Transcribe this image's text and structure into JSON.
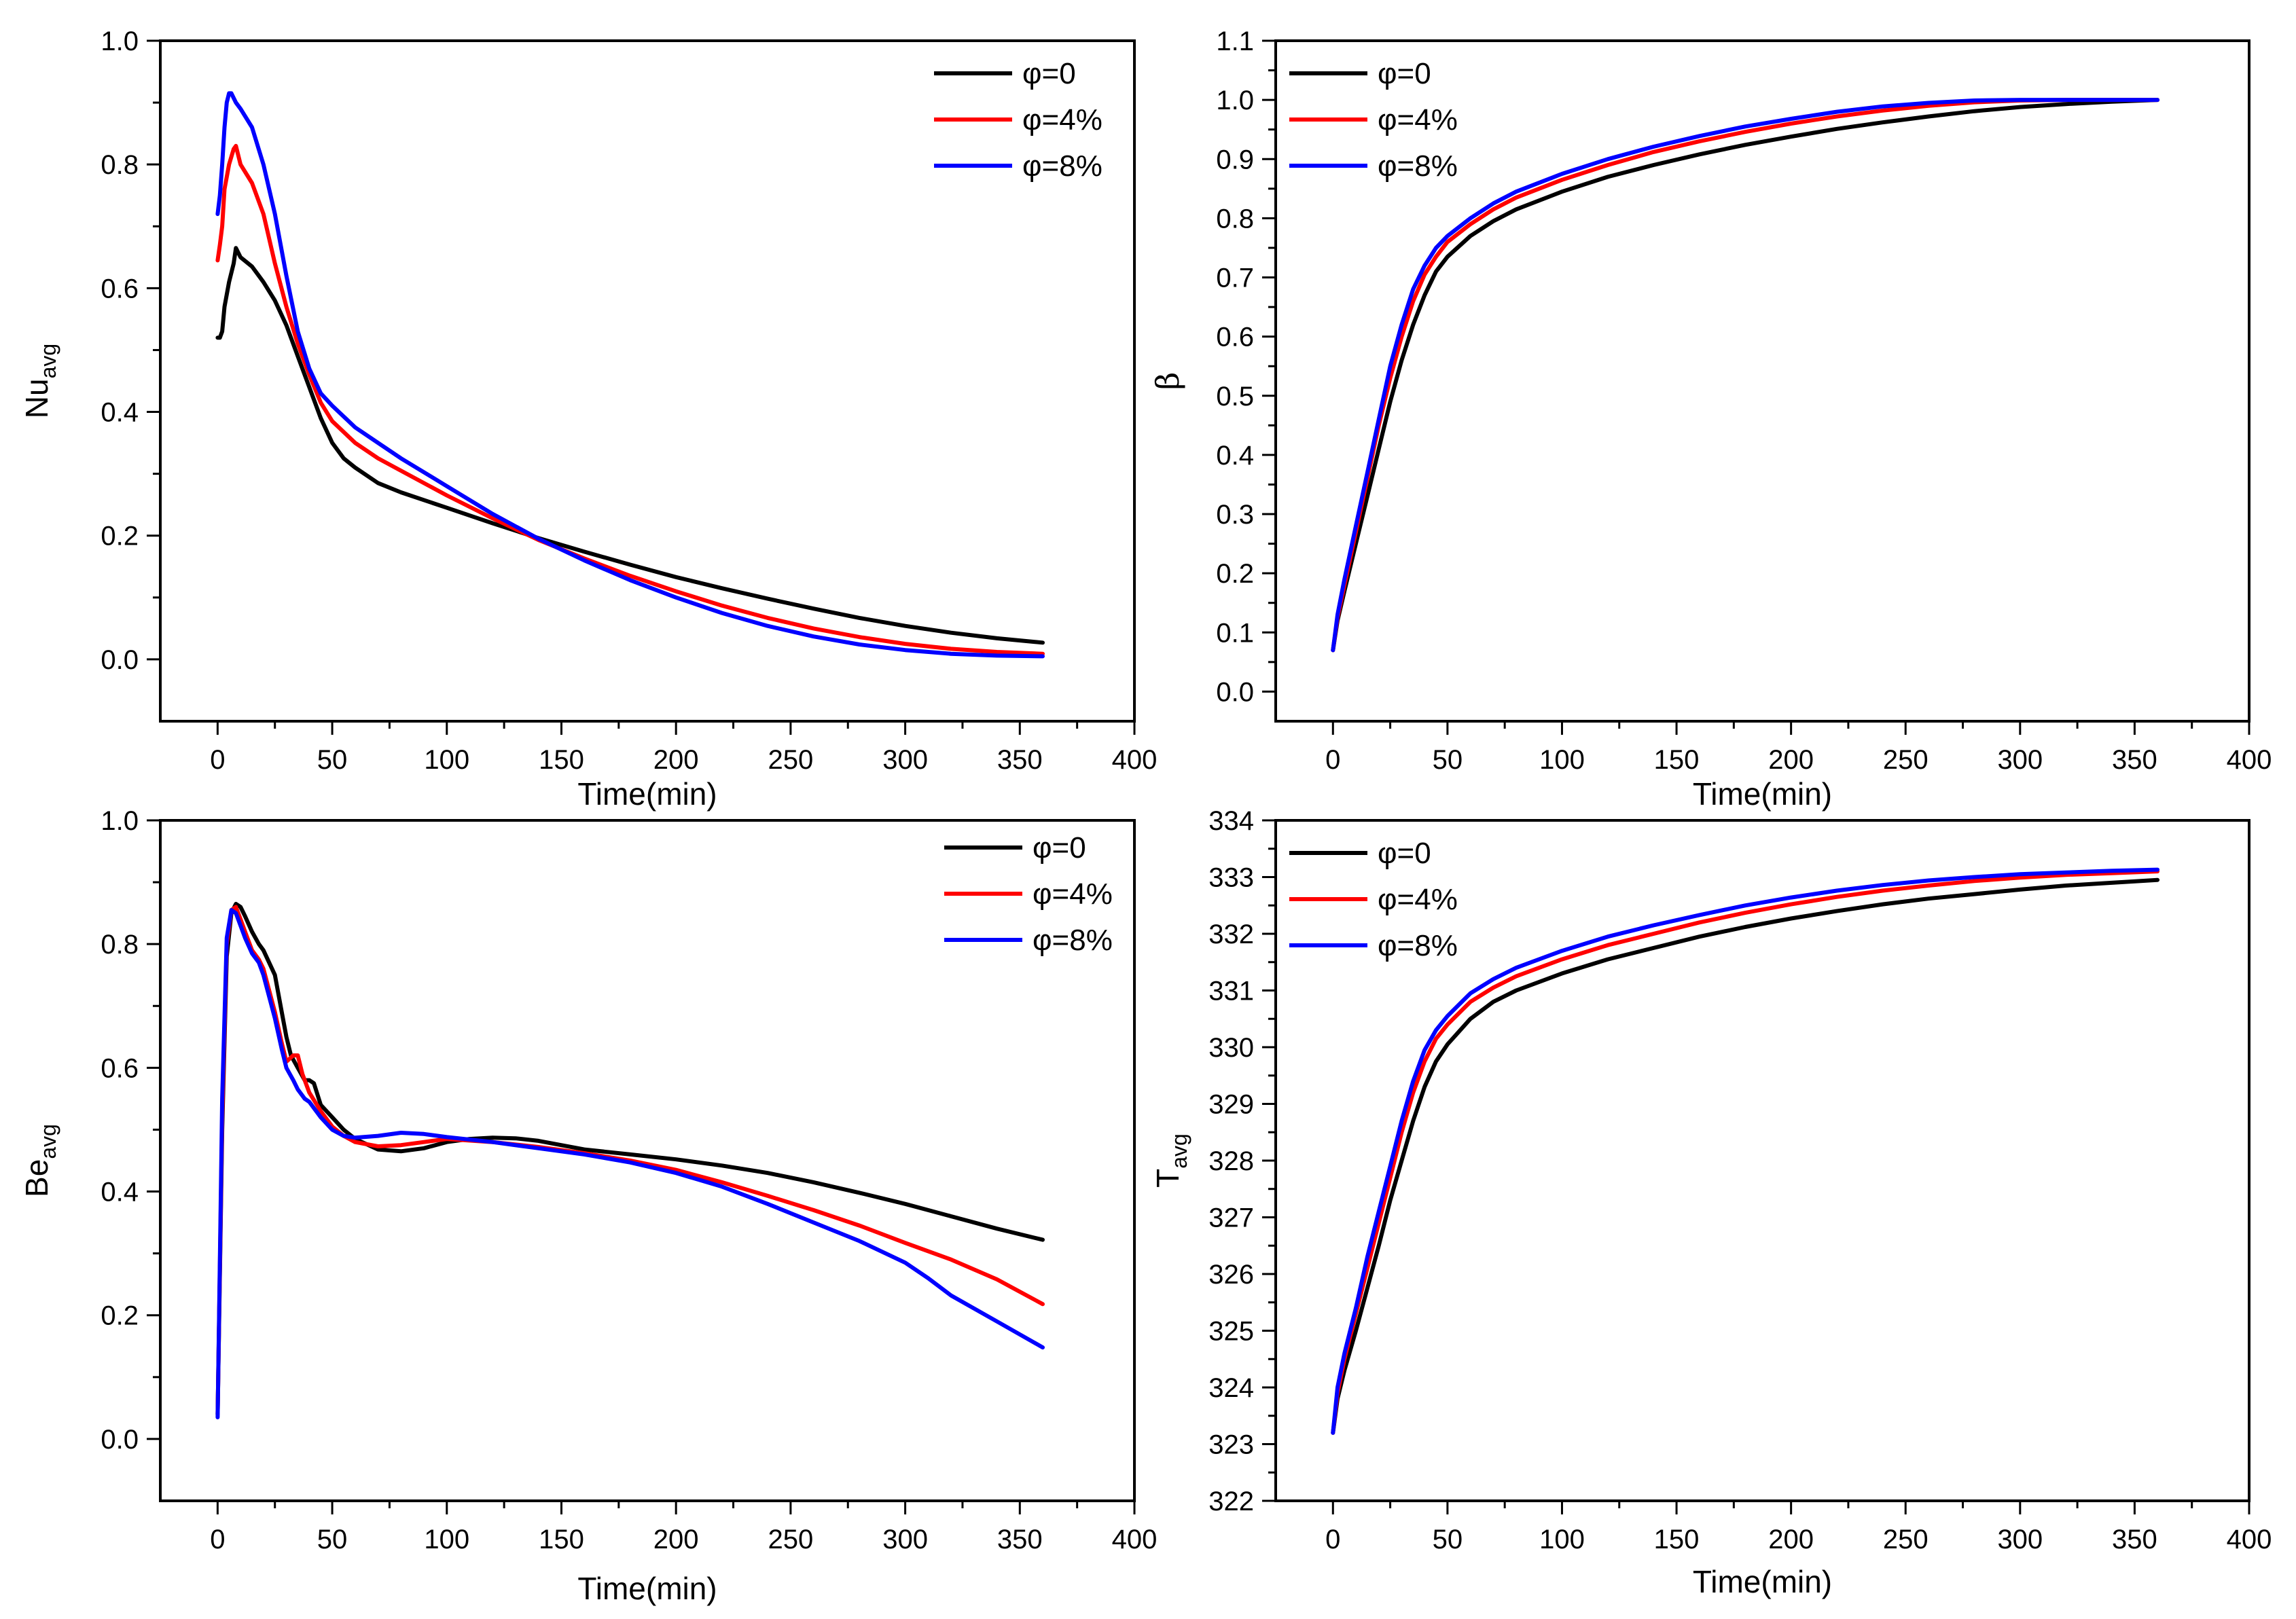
{
  "colors": {
    "phi0": "#000000",
    "phi4": "#ff0000",
    "phi8": "#0000ff"
  },
  "chart_data": [
    {
      "type": "line",
      "id": "nu",
      "title": "",
      "xlabel": "Time(min)",
      "ylabel": {
        "main": "Nu",
        "sub": "avg"
      },
      "xlim": [
        -25,
        400
      ],
      "ylim": [
        -0.1,
        1.0
      ],
      "xticks": [
        0,
        50,
        100,
        150,
        200,
        250,
        300,
        350,
        400
      ],
      "xtick_labels": [
        "0",
        "50",
        "100",
        "150",
        "200",
        "250",
        "300",
        "350",
        "400"
      ],
      "yticks": [
        0.0,
        0.2,
        0.4,
        0.6,
        0.8,
        1.0
      ],
      "ytick_labels": [
        "0.0",
        "0.2",
        "0.4",
        "0.6",
        "0.8",
        "1.0"
      ],
      "legend_position": "top-right",
      "series": [
        {
          "name": "φ=0",
          "color": "#000000",
          "x": [
            0,
            1,
            2,
            3,
            5,
            7,
            8,
            10,
            15,
            20,
            25,
            30,
            35,
            40,
            45,
            50,
            55,
            60,
            70,
            80,
            100,
            120,
            140,
            160,
            180,
            200,
            220,
            240,
            260,
            280,
            300,
            320,
            340,
            360
          ],
          "y": [
            0.52,
            0.52,
            0.53,
            0.57,
            0.61,
            0.64,
            0.665,
            0.65,
            0.635,
            0.61,
            0.58,
            0.54,
            0.49,
            0.44,
            0.39,
            0.35,
            0.325,
            0.31,
            0.285,
            0.27,
            0.245,
            0.22,
            0.196,
            0.174,
            0.153,
            0.133,
            0.115,
            0.098,
            0.082,
            0.067,
            0.054,
            0.043,
            0.034,
            0.027
          ]
        },
        {
          "name": "φ=4%",
          "color": "#ff0000",
          "x": [
            0,
            1,
            2,
            3,
            5,
            7,
            8,
            10,
            15,
            20,
            25,
            30,
            35,
            40,
            45,
            50,
            60,
            70,
            80,
            100,
            120,
            140,
            160,
            180,
            200,
            220,
            240,
            260,
            280,
            300,
            320,
            340,
            360
          ],
          "y": [
            0.645,
            0.67,
            0.7,
            0.76,
            0.8,
            0.825,
            0.83,
            0.8,
            0.77,
            0.72,
            0.64,
            0.57,
            0.51,
            0.46,
            0.415,
            0.385,
            0.35,
            0.325,
            0.305,
            0.265,
            0.228,
            0.193,
            0.163,
            0.135,
            0.11,
            0.087,
            0.067,
            0.05,
            0.036,
            0.025,
            0.017,
            0.012,
            0.009
          ]
        },
        {
          "name": "φ=8%",
          "color": "#0000ff",
          "x": [
            0,
            1,
            2,
            3,
            4,
            5,
            6,
            8,
            10,
            15,
            20,
            25,
            30,
            35,
            40,
            45,
            50,
            60,
            70,
            80,
            100,
            120,
            140,
            160,
            180,
            200,
            220,
            240,
            260,
            280,
            300,
            320,
            340,
            360
          ],
          "y": [
            0.72,
            0.75,
            0.8,
            0.86,
            0.9,
            0.915,
            0.915,
            0.9,
            0.89,
            0.86,
            0.8,
            0.72,
            0.62,
            0.53,
            0.47,
            0.43,
            0.41,
            0.375,
            0.35,
            0.325,
            0.28,
            0.235,
            0.195,
            0.16,
            0.128,
            0.1,
            0.075,
            0.054,
            0.037,
            0.024,
            0.015,
            0.009,
            0.006,
            0.005
          ]
        }
      ]
    },
    {
      "type": "line",
      "id": "beta",
      "title": "",
      "xlabel": "Time(min)",
      "ylabel": {
        "main": "β",
        "sub": ""
      },
      "xlim": [
        -25,
        400
      ],
      "ylim": [
        -0.05,
        1.1
      ],
      "xticks": [
        0,
        50,
        100,
        150,
        200,
        250,
        300,
        350,
        400
      ],
      "xtick_labels": [
        "0",
        "50",
        "100",
        "150",
        "200",
        "250",
        "300",
        "350",
        "400"
      ],
      "yticks": [
        0.0,
        0.1,
        0.2,
        0.3,
        0.4,
        0.5,
        0.6,
        0.7,
        0.8,
        0.9,
        1.0,
        1.1
      ],
      "ytick_labels": [
        "0.0",
        "0.1",
        "0.2",
        "0.3",
        "0.4",
        "0.5",
        "0.6",
        "0.7",
        "0.8",
        "0.9",
        "1.0",
        "1.1"
      ],
      "legend_position": "top-left",
      "series": [
        {
          "name": "φ=0",
          "color": "#000000",
          "x": [
            0,
            2,
            5,
            10,
            15,
            20,
            25,
            30,
            35,
            40,
            45,
            50,
            60,
            70,
            80,
            100,
            120,
            140,
            160,
            180,
            200,
            220,
            240,
            260,
            280,
            300,
            320,
            340,
            360
          ],
          "y": [
            0.07,
            0.12,
            0.17,
            0.25,
            0.33,
            0.41,
            0.49,
            0.56,
            0.62,
            0.67,
            0.71,
            0.735,
            0.77,
            0.795,
            0.815,
            0.845,
            0.87,
            0.89,
            0.908,
            0.924,
            0.938,
            0.951,
            0.962,
            0.972,
            0.981,
            0.988,
            0.993,
            0.997,
            1.0
          ]
        },
        {
          "name": "φ=4%",
          "color": "#ff0000",
          "x": [
            0,
            2,
            5,
            10,
            15,
            20,
            25,
            30,
            35,
            40,
            45,
            50,
            60,
            70,
            80,
            100,
            120,
            140,
            160,
            180,
            200,
            220,
            240,
            260,
            280,
            300,
            320,
            340,
            360
          ],
          "y": [
            0.07,
            0.125,
            0.18,
            0.27,
            0.36,
            0.45,
            0.53,
            0.6,
            0.66,
            0.705,
            0.735,
            0.76,
            0.79,
            0.815,
            0.835,
            0.865,
            0.89,
            0.912,
            0.93,
            0.946,
            0.96,
            0.972,
            0.982,
            0.99,
            0.996,
            0.999,
            1.0,
            1.0,
            1.0
          ]
        },
        {
          "name": "φ=8%",
          "color": "#0000ff",
          "x": [
            0,
            2,
            5,
            10,
            15,
            20,
            25,
            30,
            35,
            40,
            45,
            50,
            60,
            70,
            80,
            100,
            120,
            140,
            160,
            180,
            200,
            220,
            240,
            260,
            280,
            300,
            320,
            340,
            360
          ],
          "y": [
            0.07,
            0.13,
            0.19,
            0.28,
            0.37,
            0.46,
            0.55,
            0.62,
            0.68,
            0.72,
            0.75,
            0.77,
            0.8,
            0.825,
            0.845,
            0.875,
            0.9,
            0.921,
            0.939,
            0.955,
            0.968,
            0.98,
            0.989,
            0.995,
            0.999,
            1.0,
            1.0,
            1.0,
            1.0
          ]
        }
      ]
    },
    {
      "type": "line",
      "id": "be",
      "title": "",
      "xlabel": "Time(min)",
      "ylabel": {
        "main": "Be",
        "sub": "avg"
      },
      "xlim": [
        -25,
        400
      ],
      "ylim": [
        -0.1,
        1.0
      ],
      "xticks": [
        0,
        50,
        100,
        150,
        200,
        250,
        300,
        350,
        400
      ],
      "xtick_labels": [
        "0",
        "50",
        "100",
        "150",
        "200",
        "250",
        "300",
        "350",
        "400"
      ],
      "yticks": [
        0.0,
        0.2,
        0.4,
        0.6,
        0.8,
        1.0
      ],
      "ytick_labels": [
        "0.0",
        "0.2",
        "0.4",
        "0.6",
        "0.8",
        "1.0"
      ],
      "legend_position": "top-right",
      "series": [
        {
          "name": "φ=0",
          "color": "#000000",
          "x": [
            0,
            2,
            4,
            6,
            8,
            10,
            12,
            15,
            18,
            20,
            25,
            28,
            30,
            32,
            35,
            38,
            40,
            42,
            45,
            50,
            55,
            60,
            70,
            80,
            90,
            100,
            110,
            120,
            130,
            140,
            160,
            180,
            200,
            220,
            240,
            260,
            280,
            300,
            320,
            340,
            360
          ],
          "y": [
            0.04,
            0.5,
            0.78,
            0.85,
            0.865,
            0.86,
            0.845,
            0.82,
            0.8,
            0.79,
            0.75,
            0.69,
            0.65,
            0.62,
            0.6,
            0.58,
            0.58,
            0.575,
            0.54,
            0.52,
            0.5,
            0.485,
            0.468,
            0.465,
            0.47,
            0.48,
            0.485,
            0.487,
            0.486,
            0.482,
            0.468,
            0.46,
            0.452,
            0.442,
            0.43,
            0.415,
            0.398,
            0.38,
            0.36,
            0.34,
            0.322
          ]
        },
        {
          "name": "φ=4%",
          "color": "#ff0000",
          "x": [
            0,
            2,
            4,
            6,
            8,
            10,
            12,
            15,
            18,
            20,
            25,
            28,
            30,
            33,
            35,
            37,
            40,
            45,
            50,
            55,
            60,
            70,
            80,
            90,
            100,
            120,
            140,
            160,
            180,
            200,
            220,
            240,
            260,
            280,
            300,
            320,
            340,
            360
          ],
          "y": [
            0.04,
            0.52,
            0.8,
            0.855,
            0.86,
            0.84,
            0.82,
            0.79,
            0.775,
            0.76,
            0.69,
            0.64,
            0.61,
            0.62,
            0.62,
            0.59,
            0.56,
            0.53,
            0.505,
            0.49,
            0.48,
            0.473,
            0.475,
            0.48,
            0.485,
            0.48,
            0.472,
            0.462,
            0.45,
            0.435,
            0.415,
            0.393,
            0.37,
            0.345,
            0.317,
            0.29,
            0.258,
            0.218
          ]
        },
        {
          "name": "φ=8%",
          "color": "#0000ff",
          "x": [
            0,
            2,
            4,
            6,
            8,
            10,
            12,
            15,
            18,
            20,
            25,
            28,
            30,
            33,
            35,
            38,
            40,
            45,
            50,
            55,
            60,
            70,
            80,
            90,
            100,
            120,
            140,
            160,
            180,
            200,
            220,
            240,
            260,
            280,
            300,
            310,
            320,
            340,
            360
          ],
          "y": [
            0.035,
            0.55,
            0.81,
            0.855,
            0.85,
            0.83,
            0.81,
            0.785,
            0.77,
            0.75,
            0.68,
            0.63,
            0.6,
            0.58,
            0.565,
            0.55,
            0.545,
            0.52,
            0.5,
            0.49,
            0.487,
            0.49,
            0.495,
            0.493,
            0.488,
            0.48,
            0.47,
            0.46,
            0.447,
            0.43,
            0.408,
            0.38,
            0.35,
            0.32,
            0.285,
            0.26,
            0.232,
            0.19,
            0.148
          ]
        }
      ]
    },
    {
      "type": "line",
      "id": "tavg",
      "title": "",
      "xlabel": "Time(min)",
      "ylabel": {
        "main": "T",
        "sub": "avg"
      },
      "xlim": [
        -25,
        400
      ],
      "ylim": [
        322,
        334
      ],
      "xticks": [
        0,
        50,
        100,
        150,
        200,
        250,
        300,
        350,
        400
      ],
      "xtick_labels": [
        "0",
        "50",
        "100",
        "150",
        "200",
        "250",
        "300",
        "350",
        "400"
      ],
      "yticks": [
        322,
        323,
        324,
        325,
        326,
        327,
        328,
        329,
        330,
        331,
        332,
        333,
        334
      ],
      "ytick_labels": [
        "322",
        "323",
        "324",
        "325",
        "326",
        "327",
        "328",
        "329",
        "330",
        "331",
        "332",
        "333",
        "334"
      ],
      "legend_position": "top-left",
      "series": [
        {
          "name": "φ=0",
          "color": "#000000",
          "x": [
            0,
            2,
            5,
            10,
            15,
            20,
            25,
            30,
            35,
            40,
            45,
            50,
            60,
            70,
            80,
            100,
            120,
            140,
            160,
            180,
            200,
            220,
            240,
            260,
            280,
            300,
            320,
            340,
            360
          ],
          "y": [
            323.2,
            323.8,
            324.3,
            325.0,
            325.75,
            326.5,
            327.3,
            328.0,
            328.7,
            329.3,
            329.75,
            330.05,
            330.5,
            330.8,
            331.0,
            331.3,
            331.55,
            331.75,
            331.95,
            332.12,
            332.27,
            332.4,
            332.52,
            332.62,
            332.7,
            332.78,
            332.85,
            332.9,
            332.95
          ]
        },
        {
          "name": "φ=4%",
          "color": "#ff0000",
          "x": [
            0,
            2,
            5,
            10,
            15,
            20,
            25,
            30,
            35,
            40,
            45,
            50,
            60,
            70,
            80,
            100,
            120,
            140,
            160,
            180,
            200,
            220,
            240,
            260,
            280,
            300,
            320,
            340,
            360
          ],
          "y": [
            323.2,
            323.9,
            324.5,
            325.3,
            326.1,
            326.9,
            327.7,
            328.5,
            329.2,
            329.75,
            330.15,
            330.4,
            330.8,
            331.05,
            331.25,
            331.55,
            331.8,
            332.0,
            332.2,
            332.37,
            332.52,
            332.65,
            332.76,
            332.85,
            332.93,
            332.99,
            333.04,
            333.07,
            333.1
          ]
        },
        {
          "name": "φ=8%",
          "color": "#0000ff",
          "x": [
            0,
            2,
            5,
            10,
            15,
            20,
            25,
            30,
            35,
            40,
            45,
            50,
            60,
            70,
            80,
            100,
            120,
            140,
            160,
            180,
            200,
            220,
            240,
            260,
            280,
            300,
            320,
            340,
            360
          ],
          "y": [
            323.2,
            324.0,
            324.6,
            325.4,
            326.3,
            327.1,
            327.9,
            328.7,
            329.4,
            329.95,
            330.3,
            330.55,
            330.95,
            331.2,
            331.4,
            331.7,
            331.95,
            332.15,
            332.33,
            332.5,
            332.64,
            332.76,
            332.86,
            332.94,
            333.0,
            333.05,
            333.08,
            333.11,
            333.13
          ]
        }
      ]
    }
  ]
}
